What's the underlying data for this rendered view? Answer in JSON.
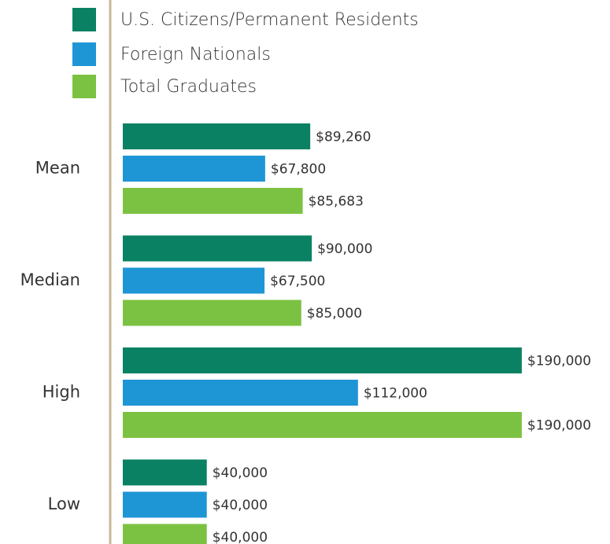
{
  "chart_data": {
    "type": "hbar",
    "categories": [
      "Mean",
      "Median",
      "High",
      "Low"
    ],
    "series": [
      {
        "name": "U.S. Citizens/Permanent Residents",
        "color": "#0b8163",
        "values": [
          89260,
          90000,
          190000,
          40000
        ],
        "value_labels": [
          "$89,260",
          "$90,000",
          "$190,000",
          "$40,000"
        ]
      },
      {
        "name": "Foreign Nationals",
        "color": "#1e96d6",
        "values": [
          67800,
          67500,
          112000,
          40000
        ],
        "value_labels": [
          "$67,800",
          "$67,500",
          "$112,000",
          "$40,000"
        ]
      },
      {
        "name": "Total Graduates",
        "color": "#7cc242",
        "values": [
          85683,
          85000,
          190000,
          40000
        ],
        "value_labels": [
          "$85,683",
          "$85,000",
          "$190,000",
          "$40,000"
        ]
      }
    ]
  }
}
